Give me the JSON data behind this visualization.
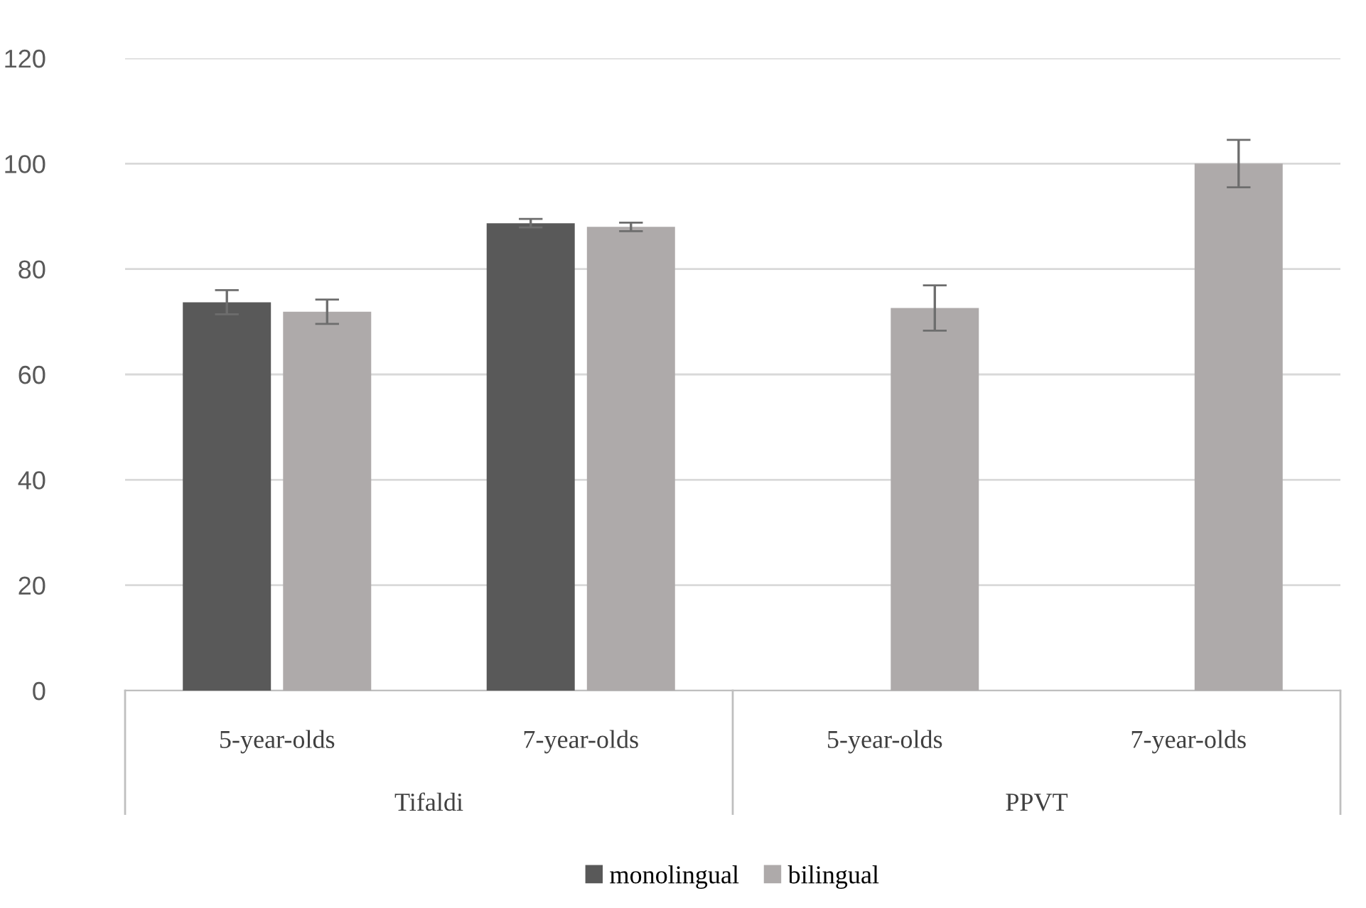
{
  "chart_data": {
    "type": "bar",
    "categories": [
      "5-year-olds",
      "7-year-olds",
      "5-year-olds",
      "7-year-olds"
    ],
    "series": [
      {
        "name": "monolingual",
        "color": "#595959",
        "values": [
          73.7,
          88.7,
          null,
          null
        ],
        "errors": [
          2.3,
          0.8,
          null,
          null
        ]
      },
      {
        "name": "bilingual",
        "color": "#aeaaaa",
        "values": [
          71.9,
          88.0,
          72.6,
          100.0
        ],
        "errors": [
          2.3,
          0.8,
          4.3,
          4.5
        ]
      }
    ],
    "annotations": [
      "Tifaldi",
      "PPVT"
    ],
    "ylim": [
      0,
      120
    ],
    "yticks": [
      0,
      20,
      40,
      60,
      80,
      100,
      120
    ],
    "grid": "y",
    "legend": "bottom"
  }
}
